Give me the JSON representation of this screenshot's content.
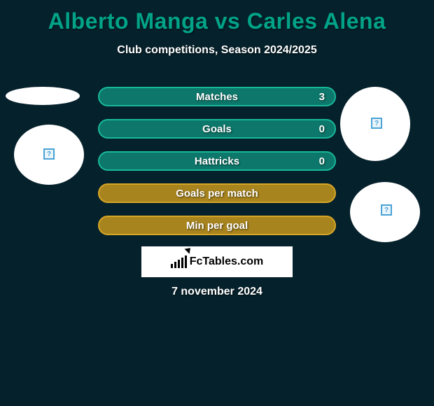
{
  "title": "Alberto Manga vs Carles Alena",
  "subtitle": "Club competitions, Season 2024/2025",
  "date": "7 november 2024",
  "footer_logo_text": "FcTables.com",
  "colors": {
    "background": "#05212b",
    "title": "#00a388",
    "text": "#ffffff",
    "row_fill_teal": "#0c776a",
    "row_border_teal": "#17b89a",
    "row_fill_gold": "#a8841e",
    "row_border_gold": "#d6a626"
  },
  "stats": [
    {
      "label": "Matches",
      "value": "3",
      "fill": "#0c776a",
      "border": "#17b89a"
    },
    {
      "label": "Goals",
      "value": "0",
      "fill": "#0c776a",
      "border": "#17b89a"
    },
    {
      "label": "Hattricks",
      "value": "0",
      "fill": "#0c776a",
      "border": "#17b89a"
    },
    {
      "label": "Goals per match",
      "value": "",
      "fill": "#a8841e",
      "border": "#d6a626"
    },
    {
      "label": "Min per goal",
      "value": "",
      "fill": "#a8841e",
      "border": "#d6a626"
    }
  ]
}
